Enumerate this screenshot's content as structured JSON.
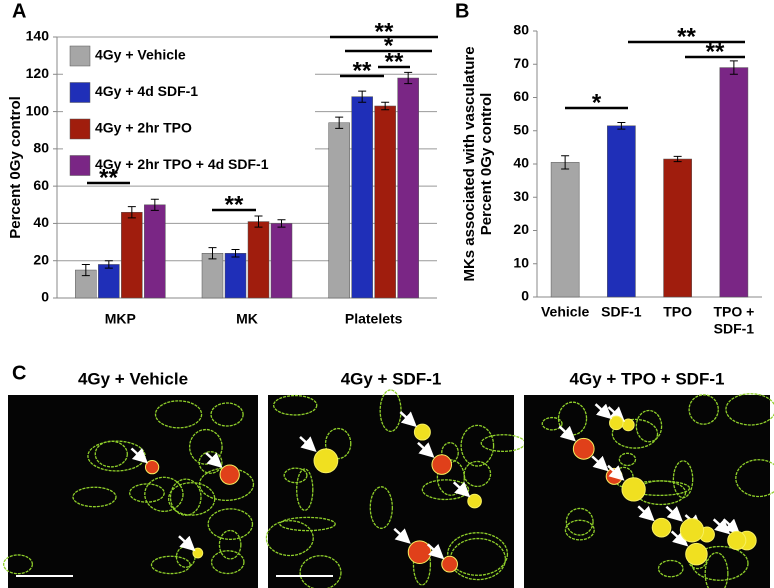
{
  "chart_data": [
    {
      "type": "bar",
      "panel": "A",
      "ylabel": "Percent 0Gy control",
      "categories": [
        "MKP",
        "MK",
        "Platelets"
      ],
      "series": [
        {
          "name": "4Gy + Vehicle",
          "color": "#a6a6a6",
          "values": [
            15,
            24,
            94
          ],
          "errors": [
            3,
            3,
            3
          ]
        },
        {
          "name": "4Gy + 4d SDF-1",
          "color": "#1f2fb8",
          "values": [
            18,
            24,
            108
          ],
          "errors": [
            2,
            2,
            3
          ]
        },
        {
          "name": "4Gy + 2hr TPO",
          "color": "#a01d0d",
          "values": [
            46,
            41,
            103
          ],
          "errors": [
            3,
            3,
            2
          ]
        },
        {
          "name": "4Gy + 2hr TPO + 4d SDF-1",
          "color": "#7a2685",
          "values": [
            50,
            40,
            118
          ],
          "errors": [
            3,
            2,
            3
          ]
        }
      ],
      "ylim": [
        0,
        140
      ],
      "yticks": [
        0,
        20,
        40,
        60,
        80,
        100,
        120,
        140
      ],
      "grid": true,
      "legend": "top-left",
      "annotations": [
        "**",
        "**",
        "**",
        "**",
        "*",
        "**"
      ]
    },
    {
      "type": "bar",
      "panel": "B",
      "ylabel": [
        "MKs associated with vasculature",
        "Percent 0Gy control"
      ],
      "categories": [
        "Vehicle",
        "SDF-1",
        "TPO",
        [
          "TPO +",
          "SDF-1"
        ]
      ],
      "values": [
        40.5,
        51.5,
        41.5,
        69
      ],
      "errors": [
        2,
        1,
        0.8,
        2
      ],
      "colors": [
        "#a6a6a6",
        "#1f2fb8",
        "#a01d0d",
        "#7a2685"
      ],
      "ylim": [
        0,
        80
      ],
      "yticks": [
        0,
        10,
        20,
        30,
        40,
        50,
        60,
        70,
        80
      ],
      "grid": false,
      "annotations": [
        "*",
        "**",
        "**"
      ]
    }
  ],
  "panel_c": {
    "label": "C",
    "images": [
      {
        "title": "4Gy + Vehicle"
      },
      {
        "title": "4Gy + SDF-1"
      },
      {
        "title": "4Gy + TPO + SDF-1"
      }
    ]
  }
}
